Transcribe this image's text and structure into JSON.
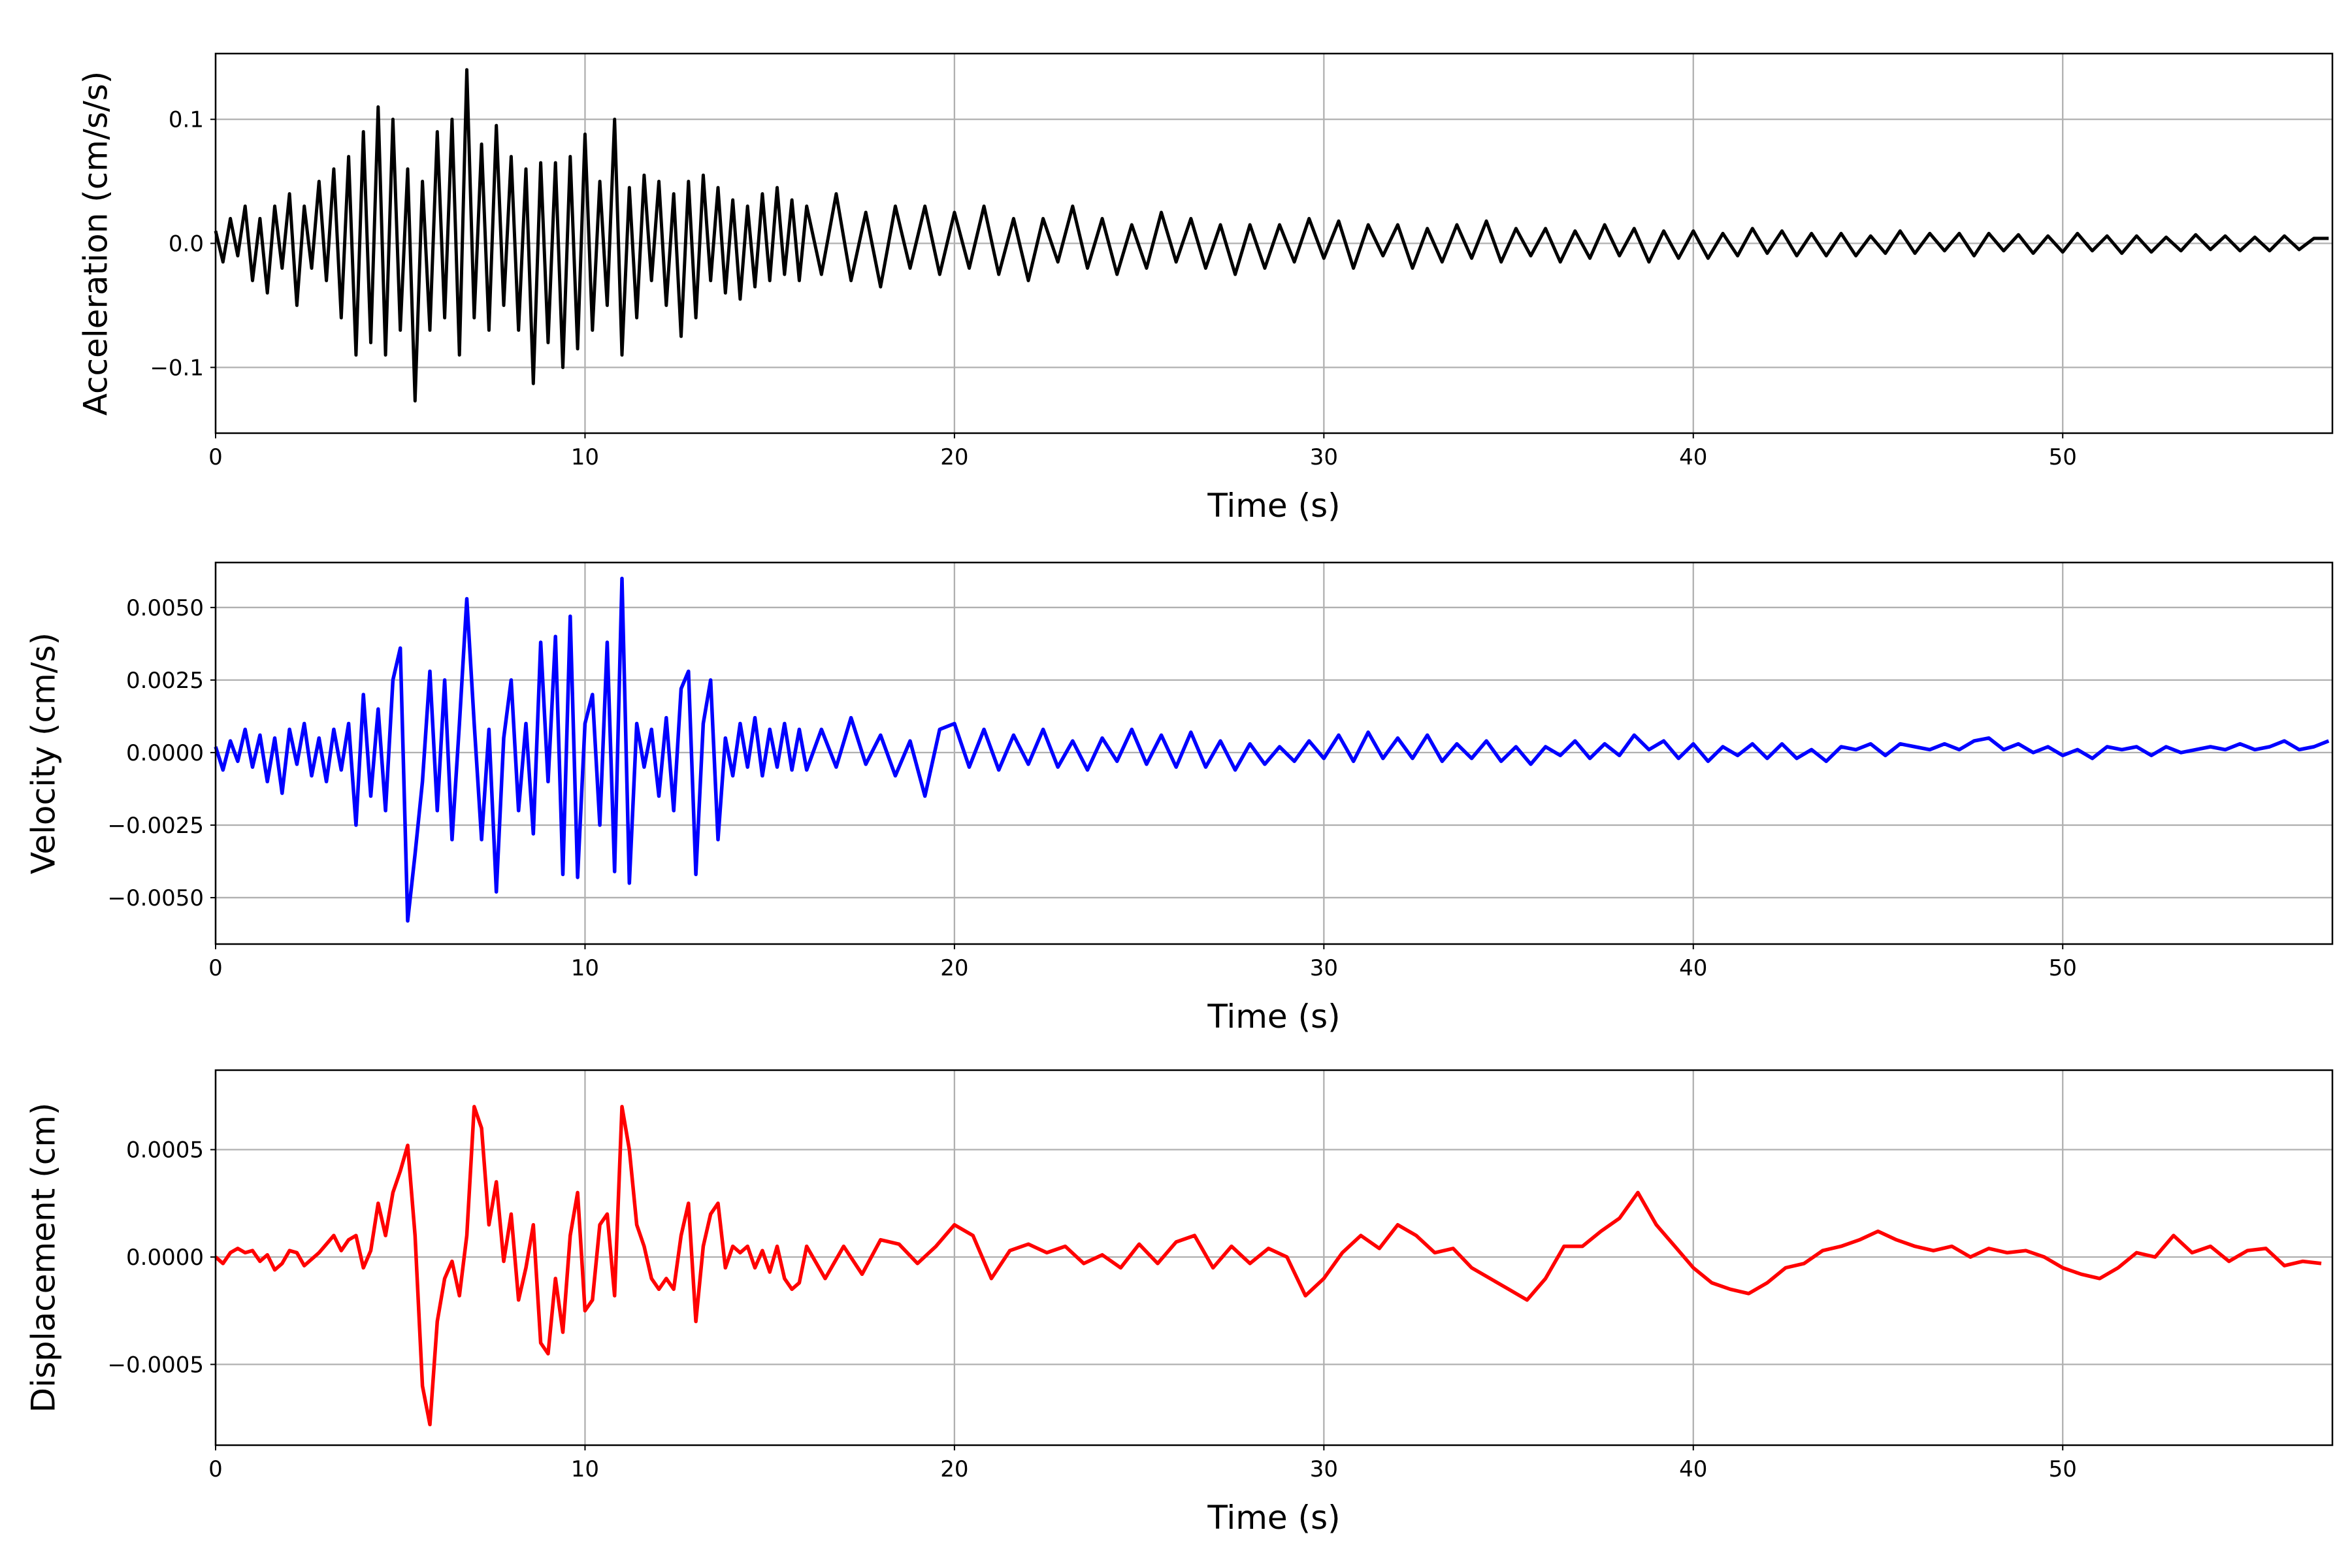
{
  "chart_data": [
    {
      "type": "line",
      "title": "",
      "xlabel": "Time (s)",
      "ylabel": "Acceleration (cm/s/s)",
      "xlim": [
        0,
        57.3
      ],
      "ylim": [
        -0.153,
        0.153
      ],
      "xticks": [
        0,
        10,
        20,
        30,
        40,
        50
      ],
      "xtick_labels": [
        "0",
        "10",
        "20",
        "30",
        "40",
        "50"
      ],
      "yticks": [
        -0.1,
        0.0,
        0.1
      ],
      "ytick_labels": [
        "−0.1",
        "0.0",
        "0.1"
      ],
      "grid": true,
      "color": "#000000",
      "series": [
        {
          "name": "acceleration",
          "segments": [
            {
              "t0": 0,
              "dt": 0.2,
              "values": [
                0.01,
                -0.015,
                0.02,
                -0.01,
                0.03,
                -0.03,
                0.02,
                -0.04,
                0.03,
                -0.02,
                0.04,
                -0.05,
                0.03,
                -0.02,
                0.05,
                -0.03,
                0.06,
                -0.06,
                0.07,
                -0.09,
                0.09,
                -0.08,
                0.11,
                -0.09,
                0.1,
                -0.07,
                0.06,
                -0.127,
                0.05,
                -0.07,
                0.09,
                -0.06,
                0.1,
                -0.09,
                0.14,
                -0.06,
                0.08,
                -0.07,
                0.095,
                -0.05,
                0.07,
                -0.07,
                0.06,
                -0.113,
                0.065,
                -0.08,
                0.065,
                -0.1,
                0.07,
                -0.085,
                0.088,
                -0.07,
                0.05,
                -0.05,
                0.1,
                -0.09,
                0.045,
                -0.06,
                0.055,
                -0.03,
                0.05,
                -0.05,
                0.04,
                -0.075,
                0.05,
                -0.06,
                0.055,
                -0.03,
                0.045,
                -0.04,
                0.035,
                -0.045,
                0.03,
                -0.035,
                0.04,
                -0.03,
                0.045,
                -0.025,
                0.035,
                -0.03
              ]
            },
            {
              "t0": 16,
              "dt": 0.4,
              "values": [
                0.03,
                -0.025,
                0.04,
                -0.03,
                0.025,
                -0.035,
                0.03,
                -0.02,
                0.03,
                -0.025,
                0.025,
                -0.02,
                0.03,
                -0.025,
                0.02,
                -0.03,
                0.02,
                -0.015,
                0.03,
                -0.02,
                0.02,
                -0.025,
                0.015,
                -0.02,
                0.025,
                -0.015,
                0.02,
                -0.02,
                0.015,
                -0.025,
                0.015,
                -0.02,
                0.015,
                -0.015,
                0.02,
                -0.012,
                0.018,
                -0.02,
                0.015,
                -0.01,
                0.015,
                -0.02,
                0.012,
                -0.015,
                0.015,
                -0.012,
                0.018,
                -0.015,
                0.012,
                -0.01,
                0.012,
                -0.015,
                0.01,
                -0.012,
                0.015,
                -0.01,
                0.012,
                -0.015,
                0.01,
                -0.012,
                0.01,
                -0.012,
                0.008,
                -0.01,
                0.012,
                -0.008,
                0.01,
                -0.01,
                0.008,
                -0.01,
                0.008,
                -0.01,
                0.006,
                -0.008,
                0.01,
                -0.008,
                0.008,
                -0.006,
                0.008,
                -0.01,
                0.008,
                -0.006,
                0.007,
                -0.008,
                0.006,
                -0.007,
                0.008,
                -0.006,
                0.006,
                -0.008,
                0.006,
                -0.007,
                0.005,
                -0.006,
                0.007,
                -0.005,
                0.006,
                -0.006,
                0.005,
                -0.006,
                0.006,
                -0.005,
                0.004,
                0.004
              ]
            }
          ]
        }
      ]
    },
    {
      "type": "line",
      "title": "",
      "xlabel": "Time (s)",
      "ylabel": "Velocity (cm/s)",
      "xlim": [
        0,
        57.3
      ],
      "ylim": [
        -0.0066,
        0.00655
      ],
      "xticks": [
        0,
        10,
        20,
        30,
        40,
        50
      ],
      "xtick_labels": [
        "0",
        "10",
        "20",
        "30",
        "40",
        "50"
      ],
      "yticks": [
        -0.005,
        -0.0025,
        0.0,
        0.0025,
        0.005
      ],
      "ytick_labels": [
        "−0.0050",
        "−0.0025",
        "0.0000",
        "0.0025",
        "0.0050"
      ],
      "grid": true,
      "color": "#0000ff",
      "series": [
        {
          "name": "velocity",
          "segments": [
            {
              "t0": 0,
              "dt": 0.2,
              "values": [
                0.0002,
                -0.0006,
                0.0004,
                -0.0003,
                0.0008,
                -0.0005,
                0.0006,
                -0.001,
                0.0005,
                -0.0014,
                0.0008,
                -0.0004,
                0.001,
                -0.0008,
                0.0005,
                -0.001,
                0.0008,
                -0.0006,
                0.001,
                -0.0025,
                0.002,
                -0.0015,
                0.0015,
                -0.002,
                0.0025,
                0.0036,
                -0.0058,
                -0.0035,
                -0.001,
                0.0028,
                -0.002,
                0.0025,
                -0.003,
                0.001,
                0.0053,
                0.001,
                -0.003,
                0.0008,
                -0.0048,
                0.0005,
                0.0025,
                -0.002,
                0.001,
                -0.0028,
                0.0038,
                -0.001,
                0.004,
                -0.0042,
                0.0047,
                -0.0043,
                0.001,
                0.002,
                -0.0025,
                0.0038,
                -0.0041,
                0.006,
                -0.0045,
                0.001,
                -0.0005,
                0.0008,
                -0.0015,
                0.0012,
                -0.002,
                0.0022,
                0.0028,
                -0.0042,
                0.001,
                0.0025,
                -0.003,
                0.0005,
                -0.0008,
                0.001,
                -0.0005,
                0.0012,
                -0.0008,
                0.0008,
                -0.0005,
                0.001,
                -0.0006,
                0.0008
              ]
            },
            {
              "t0": 16,
              "dt": 0.4,
              "values": [
                -0.0006,
                0.0008,
                -0.0005,
                0.0012,
                -0.0004,
                0.0006,
                -0.0008,
                0.0004,
                -0.0015,
                0.0008,
                0.001,
                -0.0005,
                0.0008,
                -0.0006,
                0.0006,
                -0.0004,
                0.0008,
                -0.0005,
                0.0004,
                -0.0006,
                0.0005,
                -0.0003,
                0.0008,
                -0.0004,
                0.0006,
                -0.0005,
                0.0007,
                -0.0005,
                0.0004,
                -0.0006,
                0.0003,
                -0.0004,
                0.0002,
                -0.0003,
                0.0004,
                -0.0002,
                0.0006,
                -0.0003,
                0.0007,
                -0.0002,
                0.0005,
                -0.0002,
                0.0006,
                -0.0003,
                0.0003,
                -0.0002,
                0.0004,
                -0.0003,
                0.0002,
                -0.0004,
                0.0002,
                -0.0001,
                0.0004,
                -0.0002,
                0.0003,
                -0.0001,
                0.0006,
                0.0001,
                0.0004,
                -0.0002,
                0.0003,
                -0.0003,
                0.0002,
                -0.0001,
                0.0003,
                -0.0002,
                0.0003,
                -0.0002,
                0.0001,
                -0.0003,
                0.0002,
                0.0001,
                0.0003,
                -0.0001,
                0.0003,
                0.0002,
                0.0001,
                0.0003,
                0.0001,
                0.0004,
                0.0005,
                0.0001,
                0.0003,
                0.0,
                0.0002,
                -0.0001,
                0.0001,
                -0.0002,
                0.0002,
                0.0001,
                0.0002,
                -0.0001,
                0.0002,
                0.0,
                0.0001,
                0.0002,
                0.0001,
                0.0003,
                0.0001,
                0.0002,
                0.0004,
                0.0001,
                0.0002,
                0.0004
              ]
            }
          ]
        }
      ]
    },
    {
      "type": "line",
      "title": "",
      "xlabel": "Time (s)",
      "ylabel": "Displacement (cm)",
      "xlim": [
        0,
        57.3
      ],
      "ylim": [
        -0.000876,
        0.00087
      ],
      "xticks": [
        0,
        10,
        20,
        30,
        40,
        50
      ],
      "xtick_labels": [
        "0",
        "10",
        "20",
        "30",
        "40",
        "50"
      ],
      "yticks": [
        -0.0005,
        0.0,
        0.0005
      ],
      "ytick_labels": [
        "−0.0005",
        "0.0000",
        "0.0005"
      ],
      "grid": true,
      "color": "#ff0000",
      "series": [
        {
          "name": "displacement",
          "segments": [
            {
              "t0": 0,
              "dt": 0.2,
              "values": [
                0,
                -3e-05,
                2e-05,
                4e-05,
                2e-05,
                3e-05,
                -2e-05,
                1e-05,
                -6e-05,
                -3e-05,
                3e-05,
                2e-05,
                -4e-05,
                -1e-05,
                2e-05,
                6e-05,
                0.0001,
                3e-05,
                8e-05,
                0.0001,
                -5e-05,
                3e-05,
                0.00025,
                0.0001,
                0.0003,
                0.0004,
                0.00052,
                0.0001,
                -0.0006,
                -0.00078,
                -0.0003,
                -0.0001,
                -2e-05,
                -0.00018,
                0.0001,
                0.0007,
                0.0006,
                0.00015,
                0.00035,
                -2e-05,
                0.0002,
                -0.0002,
                -5e-05,
                0.00015,
                -0.0004,
                -0.00045,
                -0.0001,
                -0.00035,
                0.0001,
                0.0003,
                -0.00025,
                -0.0002,
                0.00015,
                0.0002,
                -0.00018,
                0.0007,
                0.0005,
                0.00015,
                5e-05,
                -0.0001,
                -0.00015,
                -0.0001,
                -0.00015,
                0.0001,
                0.00025,
                -0.0003,
                5e-05,
                0.0002,
                0.00025,
                -5e-05,
                5e-05,
                2e-05,
                5e-05,
                -5e-05,
                3e-05,
                -7e-05,
                5e-05,
                -0.0001,
                -0.00015,
                -0.00012
              ]
            },
            {
              "t0": 16,
              "dt": 0.5,
              "values": [
                5e-05,
                -0.0001,
                5e-05,
                -8e-05,
                8e-05,
                6e-05,
                -3e-05,
                5e-05,
                0.00015,
                0.0001,
                -0.0001,
                3e-05,
                6e-05,
                2e-05,
                5e-05,
                -3e-05,
                1e-05,
                -5e-05,
                6e-05,
                -3e-05,
                7e-05,
                0.0001,
                -5e-05,
                5e-05,
                -3e-05,
                4e-05,
                0.0,
                -0.00018,
                -0.0001,
                2e-05,
                0.0001,
                4e-05,
                0.00015,
                0.0001,
                2e-05,
                4e-05,
                -5e-05,
                -0.0001,
                -0.00015,
                -0.0002,
                -0.0001,
                5e-05,
                5e-05,
                0.00012,
                0.00018,
                0.0003,
                0.00015,
                5e-05,
                -5e-05,
                -0.00012,
                -0.00015,
                -0.00017,
                -0.00012,
                -5e-05,
                -3e-05,
                3e-05,
                5e-05,
                8e-05,
                0.00012,
                8e-05,
                5e-05,
                3e-05,
                5e-05,
                0.0,
                4e-05,
                2e-05,
                3e-05,
                0.0,
                -5e-05,
                -8e-05,
                -0.0001,
                -5e-05,
                2e-05,
                0.0,
                0.0001,
                2e-05,
                5e-05,
                -2e-05,
                3e-05,
                4e-05,
                -4e-05,
                -2e-05,
                -3e-05
              ]
            }
          ]
        }
      ]
    }
  ]
}
